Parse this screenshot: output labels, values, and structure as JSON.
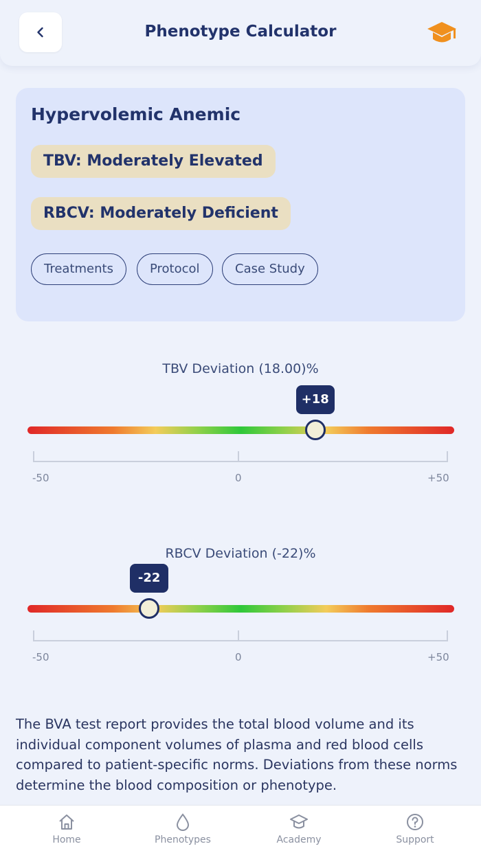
{
  "header": {
    "title": "Phenotype Calculator",
    "back_icon": "chevron-left-icon",
    "academy_icon": "graduation-cap-icon",
    "accent_color": "#f0901e"
  },
  "result": {
    "phenotype": "Hypervolemic Anemic",
    "tbv_status": "TBV: Moderately Elevated",
    "rbcv_status": "RBCV: Moderately Deficient",
    "actions": [
      "Treatments",
      "Protocol",
      "Case Study"
    ]
  },
  "tbv": {
    "title": "TBV Deviation (18.00)%",
    "value": 18,
    "badge": "+18",
    "min": -50,
    "max": 50,
    "ticks": [
      "-50",
      "0",
      "+50"
    ]
  },
  "rbcv": {
    "title": "RBCV Deviation (-22)%",
    "value": -22,
    "badge": "-22",
    "min": -50,
    "max": 50,
    "ticks": [
      "-50",
      "0",
      "+50"
    ]
  },
  "description": "The BVA test report provides the total blood volume and its individual component volumes of plasma and red blood cells compared to patient-specific norms. Deviations from these norms determine the blood composition or phenotype.",
  "nav": {
    "items": [
      {
        "label": "Home",
        "icon": "home-icon"
      },
      {
        "label": "Phenotypes",
        "icon": "droplet-icon"
      },
      {
        "label": "Academy",
        "icon": "graduation-cap-icon"
      },
      {
        "label": "Support",
        "icon": "help-circle-icon"
      }
    ]
  },
  "colors": {
    "navy": "#1f2f66",
    "pill": "#eadfc2",
    "card": "#dde5fb",
    "background": "#eef2fb"
  }
}
